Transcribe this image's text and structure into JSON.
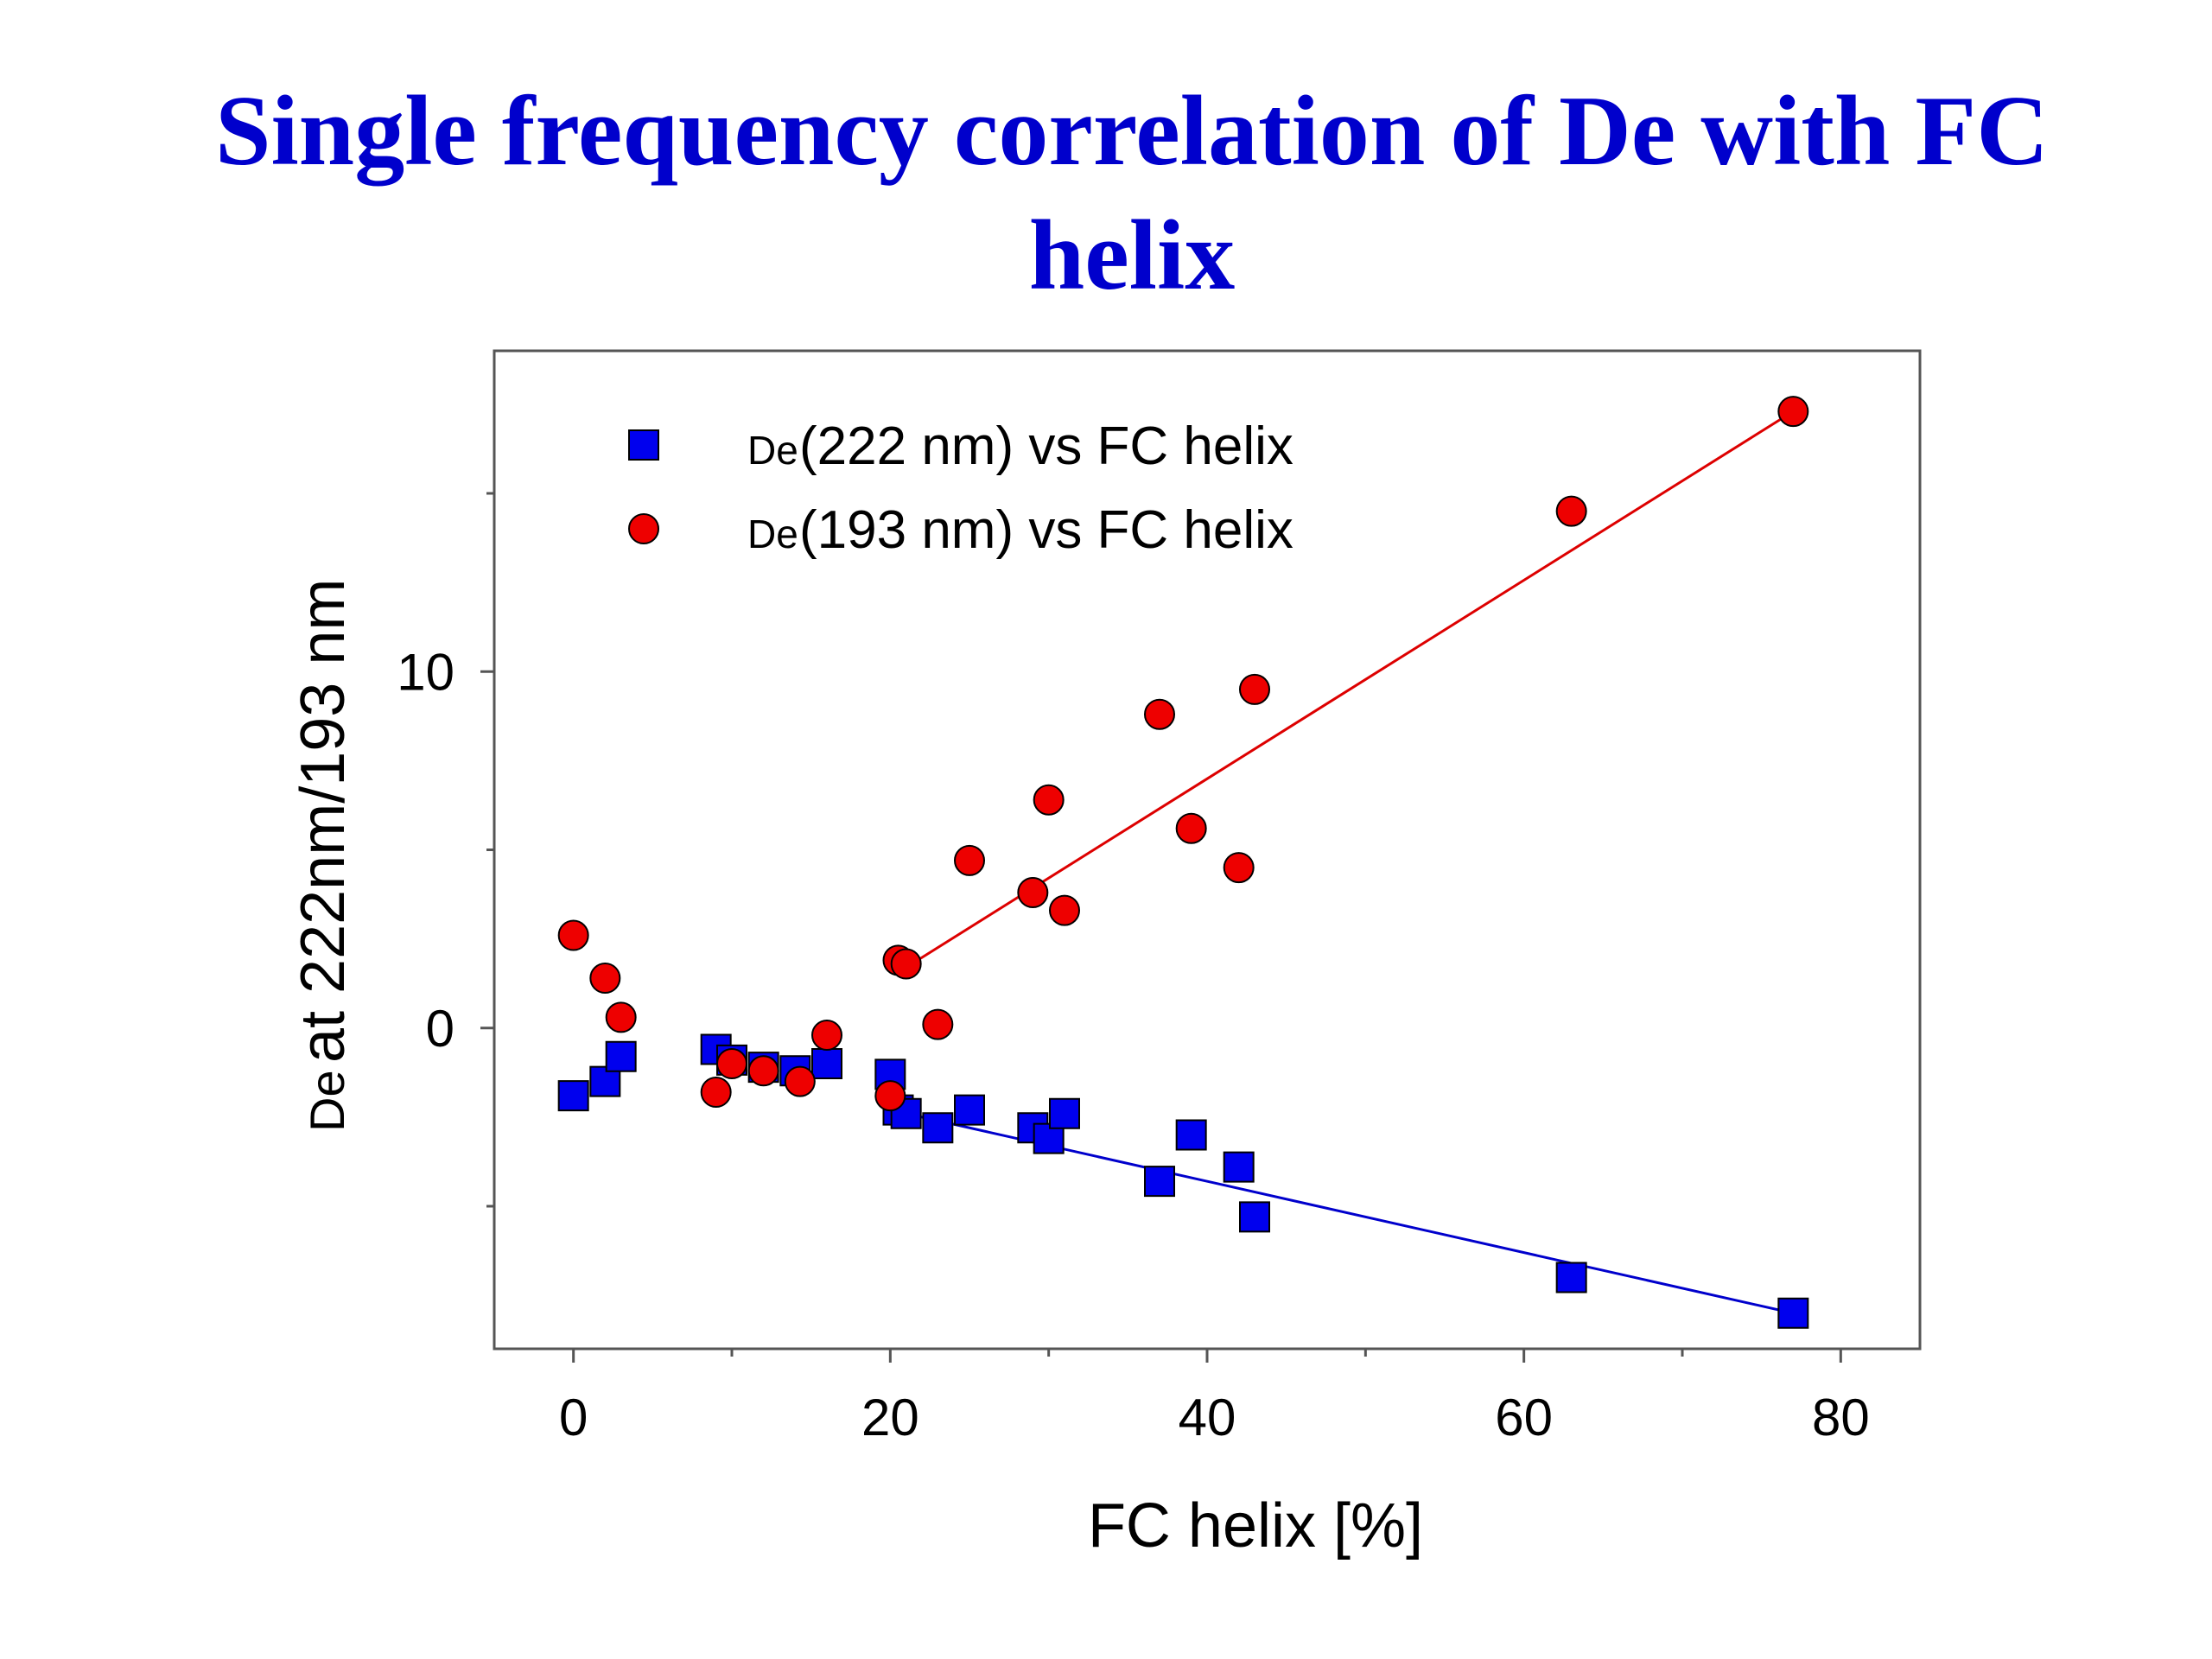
{
  "title": {
    "line1": "Single frequency correlation of De with FC",
    "line2": "helix",
    "color": "#0000cc"
  },
  "chart_data": {
    "type": "scatter",
    "xlabel": "FC helix [%]",
    "ylabel": "at 222nm/193 nm",
    "ylabel_prefix_glyph": "De",
    "xlim": [
      -5,
      85
    ],
    "ylim": [
      -9,
      19
    ],
    "x_ticks": [
      0,
      20,
      40,
      60,
      80
    ],
    "x_ticks_minor": [
      10,
      30,
      50,
      70
    ],
    "y_ticks": [
      0,
      10
    ],
    "y_ticks_minor": [
      -5,
      5,
      15
    ],
    "grid": false,
    "legend_position": "top-left",
    "series": [
      {
        "name": "(222 nm) vs FC helix",
        "legend_prefix_glyph": "De",
        "marker": "square",
        "color": "#0000ee",
        "points": [
          [
            0,
            -1.9
          ],
          [
            2,
            -1.5
          ],
          [
            3,
            -0.8
          ],
          [
            9,
            -0.6
          ],
          [
            10,
            -0.9
          ],
          [
            12,
            -1.1
          ],
          [
            14,
            -1.2
          ],
          [
            16,
            -1.0
          ],
          [
            20,
            -1.3
          ],
          [
            20.5,
            -2.3
          ],
          [
            21,
            -2.4
          ],
          [
            23,
            -2.8
          ],
          [
            25,
            -2.3
          ],
          [
            29,
            -2.8
          ],
          [
            30,
            -3.1
          ],
          [
            31,
            -2.4
          ],
          [
            37,
            -4.3
          ],
          [
            39,
            -3.0
          ],
          [
            42,
            -3.9
          ],
          [
            43,
            -5.3
          ],
          [
            63,
            -7.0
          ],
          [
            77,
            -8.0
          ]
        ],
        "fit_line": [
          [
            21,
            -2.4
          ],
          [
            77,
            -8.0
          ]
        ],
        "fit_color": "#0000cc"
      },
      {
        "name": "(193 nm) vs FC helix",
        "legend_prefix_glyph": "De",
        "marker": "circle",
        "color": "#ee0000",
        "points": [
          [
            0,
            2.6
          ],
          [
            2,
            1.4
          ],
          [
            3,
            0.3
          ],
          [
            9,
            -1.8
          ],
          [
            10,
            -1.0
          ],
          [
            12,
            -1.2
          ],
          [
            14.3,
            -1.5
          ],
          [
            16,
            -0.2
          ],
          [
            20,
            -1.9
          ],
          [
            20.5,
            1.9
          ],
          [
            21,
            1.8
          ],
          [
            23,
            0.1
          ],
          [
            25,
            4.7
          ],
          [
            29,
            3.8
          ],
          [
            30,
            6.4
          ],
          [
            31,
            3.3
          ],
          [
            37,
            8.8
          ],
          [
            39,
            5.6
          ],
          [
            42,
            4.5
          ],
          [
            43,
            9.5
          ],
          [
            63,
            14.5
          ],
          [
            77,
            17.3
          ]
        ],
        "fit_line": [
          [
            21,
            1.7
          ],
          [
            77,
            17.3
          ]
        ],
        "fit_color": "#dd0000"
      }
    ]
  }
}
